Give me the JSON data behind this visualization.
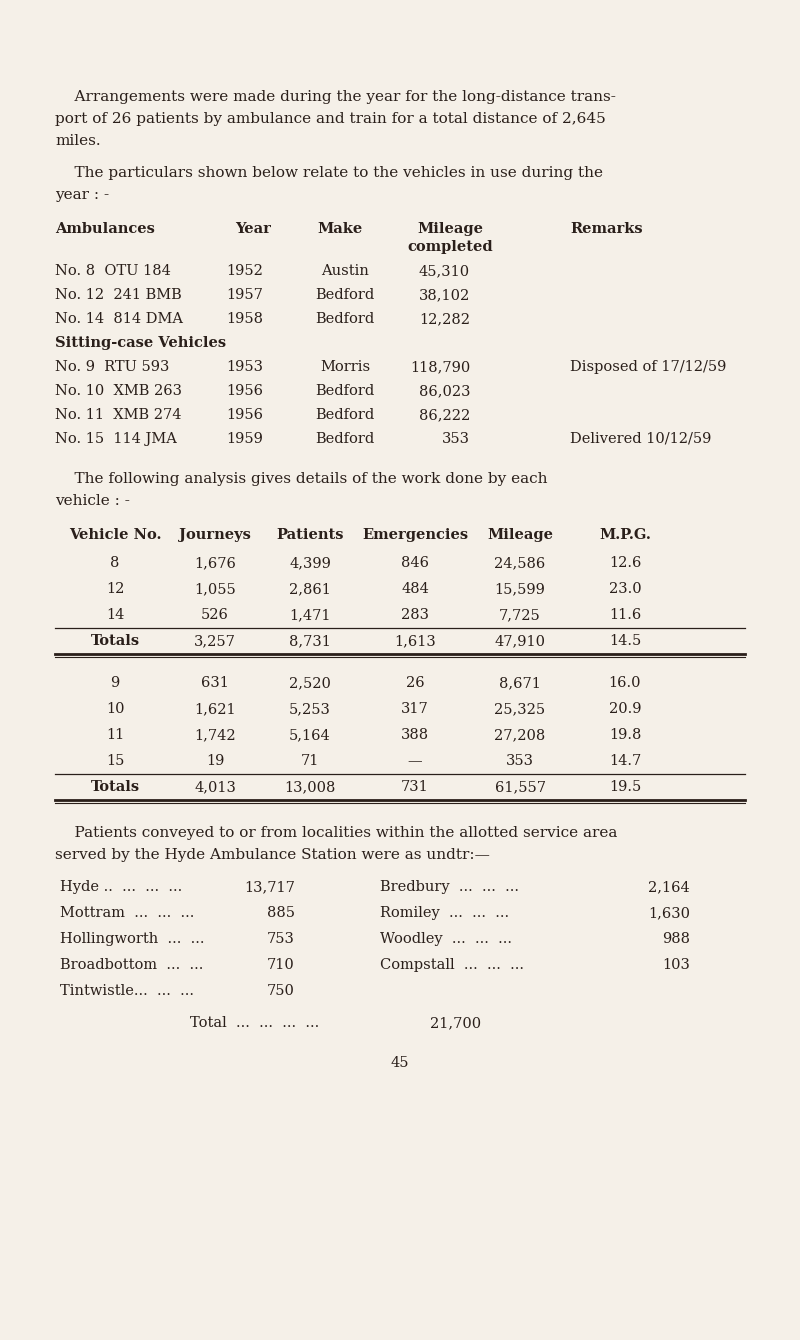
{
  "bg_color": "#f5f0e8",
  "text_color": "#2a1f1a",
  "intro_text": [
    "    Arrangements were made during the year for the long-distance trans-",
    "port of 26 patients by ambulance and train for a total distance of 2,645",
    "miles."
  ],
  "particulars_text": [
    "    The particulars shown below relate to the vehicles in use during the",
    "year : -"
  ],
  "amb_header": [
    "Ambulances",
    "Year",
    "Make",
    "Mileage",
    "completed",
    "Remarks"
  ],
  "ambulances": [
    [
      "No. 8  OTU 184",
      "1952",
      "Austin",
      "45,310",
      ""
    ],
    [
      "No. 12  241 BMB",
      "1957",
      "Bedford",
      "38,102",
      ""
    ],
    [
      "No. 14  814 DMA",
      "1958",
      "Bedford",
      "12,282",
      ""
    ]
  ],
  "sitting_label": "Sitting-case Vehicles",
  "sitting_vehicles": [
    [
      "No. 9  RTU 593",
      "1953",
      "Morris",
      "118,790",
      "Disposed of 17/12/59"
    ],
    [
      "No. 10  XMB 263",
      "1956",
      "Bedford",
      "86,023",
      ""
    ],
    [
      "No. 11  XMB 274",
      "1956",
      "Bedford",
      "86,222",
      ""
    ],
    [
      "No. 15  114 JMA",
      "1959",
      "Bedford",
      "353",
      "Delivered 10/12/59"
    ]
  ],
  "analysis_text": [
    "    The following analysis gives details of the work done by each",
    "vehicle : -"
  ],
  "analysis_header": [
    "Vehicle No.",
    "Journeys",
    "Patients",
    "Emergencies",
    "Mileage",
    "M.P.G."
  ],
  "analysis_amb": [
    [
      "8",
      "1,676",
      "4,399",
      "846",
      "24,586",
      "12.6"
    ],
    [
      "12",
      "1,055",
      "2,861",
      "484",
      "15,599",
      "23.0"
    ],
    [
      "14",
      "526",
      "1,471",
      "283",
      "7,725",
      "11.6"
    ]
  ],
  "analysis_amb_totals": [
    "Totals",
    "3,257",
    "8,731",
    "1,613",
    "47,910",
    "14.5"
  ],
  "analysis_sit": [
    [
      "9",
      "631",
      "2,520",
      "26",
      "8,671",
      "16.0"
    ],
    [
      "10",
      "1,621",
      "5,253",
      "317",
      "25,325",
      "20.9"
    ],
    [
      "11",
      "1,742",
      "5,164",
      "388",
      "27,208",
      "19.8"
    ],
    [
      "15",
      "19",
      "71",
      "—",
      "353",
      "14.7"
    ]
  ],
  "analysis_sit_totals": [
    "Totals",
    "4,013",
    "13,008",
    "731",
    "61,557",
    "19.5"
  ],
  "locality_text": [
    "    Patients conveyed to or from localities within the allotted service area",
    "served by the Hyde Ambulance Station were as undtr:—"
  ],
  "localities_left": [
    [
      "Hyde ..  ...  ...  ...",
      "13,717"
    ],
    [
      "Mottram  ...  ...  ...",
      "885"
    ],
    [
      "Hollingworth  ...  ...",
      "753"
    ],
    [
      "Broadbottom  ...  ...",
      "710"
    ],
    [
      "Tintwistle...  ...  ...",
      "750"
    ]
  ],
  "localities_right": [
    [
      "Bredbury  ...  ...  ...",
      "2,164"
    ],
    [
      "Romiley  ...  ...  ...",
      "1,630"
    ],
    [
      "Woodley  ...  ...  ...",
      "988"
    ],
    [
      "Compstall  ...  ...  ...",
      "103"
    ]
  ],
  "total_line_label": "Total  ...  ...  ...  ...",
  "total_line_value": "21,700",
  "page_number": "45"
}
